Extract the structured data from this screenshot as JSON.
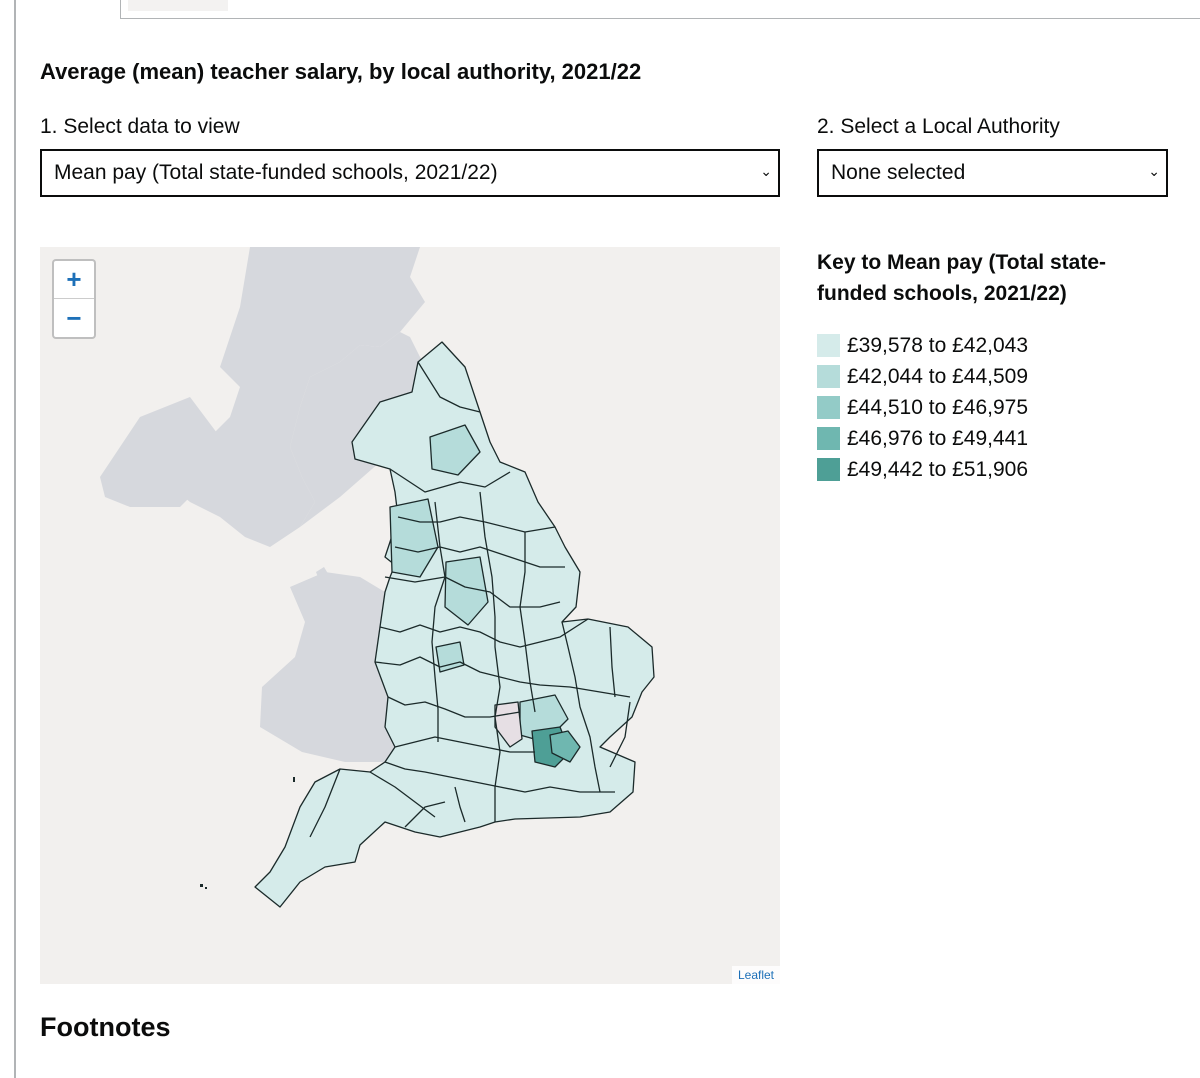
{
  "chart_title": "Average (mean) teacher salary, by local authority, 2021/22",
  "controls": {
    "data_label": "1. Select data to view",
    "data_value": "Mean pay (Total state-funded schools, 2021/22)",
    "authority_label": "2. Select a Local Authority",
    "authority_value": "None selected"
  },
  "map": {
    "zoom_in": "+",
    "zoom_out": "−",
    "attribution": "Leaflet"
  },
  "key": {
    "title": "Key to Mean pay (Total state-funded schools, 2021/22)",
    "items": [
      {
        "label": "£39,578 to £42,043",
        "color": "#d5ebea"
      },
      {
        "label": "£42,044 to £44,509",
        "color": "#b5dcda"
      },
      {
        "label": "£44,510 to £46,975",
        "color": "#93cbc7"
      },
      {
        "label": "£46,976 to £49,441",
        "color": "#6fb7b0"
      },
      {
        "label": "£49,442 to £51,906",
        "color": "#4e9f96"
      }
    ]
  },
  "colors": {
    "land_other": "#d6d8dd",
    "sea": "#f2f0ee",
    "no_data": "#e6dfe4"
  },
  "footnotes_heading": "Footnotes"
}
